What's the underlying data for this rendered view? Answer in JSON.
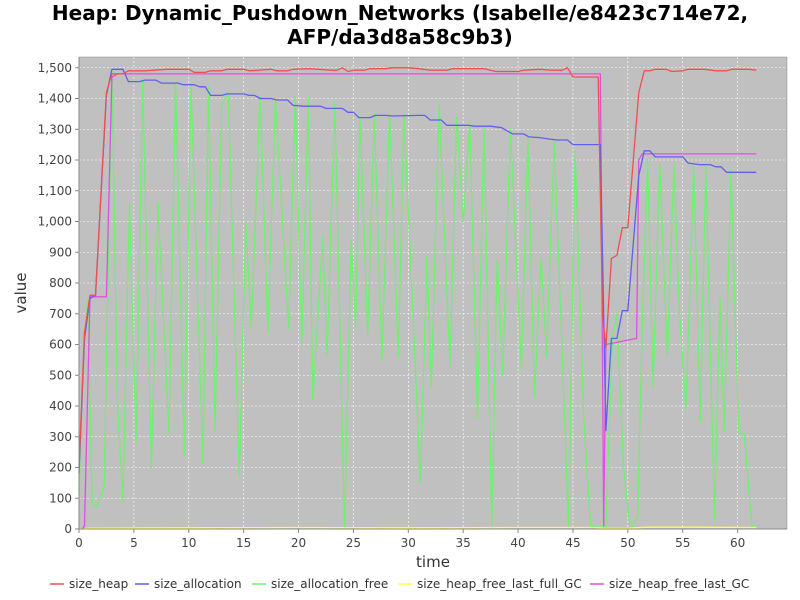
{
  "chart_data": {
    "type": "line",
    "title_lines": [
      "Heap: Dynamic_Pushdown_Networks (Isabelle/e8423c714e72,",
      "AFP/da3d8a58c9b3)"
    ],
    "xlabel": "time",
    "ylabel": "value",
    "xlim": [
      0,
      64.5
    ],
    "ylim": [
      0,
      1535
    ],
    "x_ticks": [
      0,
      5,
      10,
      15,
      20,
      25,
      30,
      35,
      40,
      45,
      50,
      55,
      60
    ],
    "x_tick_labels": [
      "0",
      "5",
      "10",
      "15",
      "20",
      "25",
      "30",
      "35",
      "40",
      "45",
      "50",
      "55",
      "60"
    ],
    "y_ticks": [
      0,
      100,
      200,
      300,
      400,
      500,
      600,
      700,
      800,
      900,
      1000,
      1100,
      1200,
      1300,
      1400,
      1500
    ],
    "y_tick_labels": [
      "0",
      "100",
      "200",
      "300",
      "400",
      "500",
      "600",
      "700",
      "800",
      "900",
      "1,000",
      "1,100",
      "1,200",
      "1,300",
      "1,400",
      "1,500"
    ],
    "grid": true,
    "legend_position": "bottom",
    "plot_background": "#c0c0c0",
    "series": [
      {
        "name": "size_heap",
        "color": "#f05050",
        "points": [
          [
            0,
            200
          ],
          [
            0.5,
            640
          ],
          [
            1,
            760
          ],
          [
            1.5,
            760
          ],
          [
            2.5,
            1420
          ],
          [
            3,
            1480
          ],
          [
            4,
            1480
          ],
          [
            4.5,
            1490
          ],
          [
            6,
            1490
          ],
          [
            8,
            1495
          ],
          [
            10,
            1495
          ],
          [
            10.5,
            1485
          ],
          [
            11.5,
            1485
          ],
          [
            12,
            1490
          ],
          [
            13,
            1490
          ],
          [
            13.5,
            1495
          ],
          [
            15,
            1495
          ],
          [
            15.5,
            1490
          ],
          [
            17.5,
            1495
          ],
          [
            18,
            1490
          ],
          [
            19,
            1490
          ],
          [
            19.5,
            1495
          ],
          [
            21,
            1497
          ],
          [
            23,
            1492
          ],
          [
            23.5,
            1492
          ],
          [
            24,
            1500
          ],
          [
            24.5,
            1488
          ],
          [
            25,
            1492
          ],
          [
            26,
            1492
          ],
          [
            26.5,
            1497
          ],
          [
            28,
            1497
          ],
          [
            28.5,
            1500
          ],
          [
            30,
            1500
          ],
          [
            31,
            1497
          ],
          [
            32,
            1492
          ],
          [
            33.5,
            1492
          ],
          [
            34,
            1497
          ],
          [
            37,
            1497
          ],
          [
            37.5,
            1492
          ],
          [
            38,
            1488
          ],
          [
            40,
            1488
          ],
          [
            40.5,
            1492
          ],
          [
            42,
            1495
          ],
          [
            43,
            1492
          ],
          [
            44,
            1492
          ],
          [
            44.5,
            1500
          ],
          [
            45,
            1470
          ],
          [
            47.3,
            1470
          ],
          [
            47.7,
            690
          ],
          [
            48,
            590
          ],
          [
            48.5,
            880
          ],
          [
            49,
            890
          ],
          [
            49.5,
            980
          ],
          [
            50,
            980
          ],
          [
            50.5,
            1200
          ],
          [
            51,
            1420
          ],
          [
            51.5,
            1490
          ],
          [
            52,
            1490
          ],
          [
            52.5,
            1495
          ],
          [
            53.5,
            1495
          ],
          [
            54,
            1488
          ],
          [
            55,
            1490
          ],
          [
            55.5,
            1495
          ],
          [
            57,
            1495
          ],
          [
            58,
            1490
          ],
          [
            59,
            1490
          ],
          [
            59.5,
            1495
          ],
          [
            61,
            1495
          ],
          [
            61.7,
            1492
          ]
        ]
      },
      {
        "name": "size_allocation",
        "color": "#6060f0",
        "points": [
          [
            0,
            180
          ],
          [
            0.5,
            620
          ],
          [
            1,
            750
          ],
          [
            1.5,
            760
          ],
          [
            2.5,
            1410
          ],
          [
            3,
            1495
          ],
          [
            4,
            1495
          ],
          [
            4.5,
            1455
          ],
          [
            5.5,
            1455
          ],
          [
            6,
            1460
          ],
          [
            7,
            1460
          ],
          [
            7.5,
            1450
          ],
          [
            9,
            1450
          ],
          [
            9.5,
            1445
          ],
          [
            10.5,
            1445
          ],
          [
            11,
            1438
          ],
          [
            11.5,
            1438
          ],
          [
            12,
            1410
          ],
          [
            13,
            1410
          ],
          [
            13.5,
            1415
          ],
          [
            15,
            1415
          ],
          [
            15.5,
            1410
          ],
          [
            16,
            1410
          ],
          [
            16.5,
            1400
          ],
          [
            17.5,
            1400
          ],
          [
            18,
            1395
          ],
          [
            19,
            1395
          ],
          [
            19.5,
            1378
          ],
          [
            20.5,
            1375
          ],
          [
            22,
            1375
          ],
          [
            22.5,
            1368
          ],
          [
            24,
            1368
          ],
          [
            24.5,
            1355
          ],
          [
            25,
            1355
          ],
          [
            25.5,
            1338
          ],
          [
            26.5,
            1338
          ],
          [
            27,
            1345
          ],
          [
            28,
            1345
          ],
          [
            28.5,
            1343
          ],
          [
            31,
            1345
          ],
          [
            31.5,
            1345
          ],
          [
            32,
            1330
          ],
          [
            33,
            1330
          ],
          [
            33.5,
            1313
          ],
          [
            35,
            1313
          ],
          [
            35.5,
            1313
          ],
          [
            36,
            1310
          ],
          [
            37.5,
            1310
          ],
          [
            38.5,
            1305
          ],
          [
            39.5,
            1285
          ],
          [
            40.5,
            1285
          ],
          [
            41,
            1275
          ],
          [
            42,
            1273
          ],
          [
            42.5,
            1270
          ],
          [
            43.5,
            1265
          ],
          [
            44.5,
            1265
          ],
          [
            45,
            1250
          ],
          [
            47.5,
            1250
          ],
          [
            48,
            320
          ],
          [
            48.5,
            620
          ],
          [
            49,
            620
          ],
          [
            49.5,
            710
          ],
          [
            50,
            710
          ],
          [
            51,
            1150
          ],
          [
            51.5,
            1230
          ],
          [
            52,
            1230
          ],
          [
            52.5,
            1210
          ],
          [
            54,
            1210
          ],
          [
            55,
            1210
          ],
          [
            55.5,
            1190
          ],
          [
            56.5,
            1185
          ],
          [
            57.5,
            1185
          ],
          [
            58,
            1178
          ],
          [
            58.5,
            1178
          ],
          [
            59,
            1160
          ],
          [
            60,
            1160
          ],
          [
            61.7,
            1160
          ]
        ]
      },
      {
        "name": "size_allocation_free",
        "color": "#70f070",
        "points": [
          [
            0,
            120
          ],
          [
            0.3,
            500
          ],
          [
            0.8,
            750
          ],
          [
            1.2,
            80
          ],
          [
            1.6,
            70
          ],
          [
            2.3,
            140
          ],
          [
            3,
            1490
          ],
          [
            3.5,
            420
          ],
          [
            4,
            90
          ],
          [
            4.6,
            1060
          ],
          [
            5.2,
            280
          ],
          [
            5.8,
            1460
          ],
          [
            6.6,
            200
          ],
          [
            7.2,
            1060
          ],
          [
            8.2,
            310
          ],
          [
            8.8,
            1450
          ],
          [
            9.6,
            240
          ],
          [
            10.2,
            1440
          ],
          [
            11.3,
            210
          ],
          [
            11.8,
            1440
          ],
          [
            12.4,
            320
          ],
          [
            13,
            1380
          ],
          [
            13.6,
            1420
          ],
          [
            14.6,
            170
          ],
          [
            15.2,
            1000
          ],
          [
            15.7,
            650
          ],
          [
            16.5,
            1410
          ],
          [
            17.2,
            640
          ],
          [
            17.9,
            1400
          ],
          [
            19.1,
            650
          ],
          [
            19.7,
            1410
          ],
          [
            20.3,
            600
          ],
          [
            20.9,
            1400
          ],
          [
            21.3,
            420
          ],
          [
            22.2,
            950
          ],
          [
            22.6,
            560
          ],
          [
            23.3,
            1390
          ],
          [
            24.2,
            0
          ],
          [
            24.8,
            940
          ],
          [
            25.2,
            650
          ],
          [
            25.6,
            1340
          ],
          [
            26.3,
            630
          ],
          [
            26.9,
            1350
          ],
          [
            27.6,
            550
          ],
          [
            28.3,
            1350
          ],
          [
            29.1,
            560
          ],
          [
            29.6,
            1350
          ],
          [
            30.6,
            560
          ],
          [
            31.1,
            150
          ],
          [
            31.7,
            890
          ],
          [
            32.1,
            460
          ],
          [
            32.8,
            1380
          ],
          [
            33.8,
            530
          ],
          [
            34.4,
            1340
          ],
          [
            35,
            1000
          ],
          [
            35.6,
            1320
          ],
          [
            36.3,
            360
          ],
          [
            36.9,
            1310
          ],
          [
            37.6,
            10
          ],
          [
            38.1,
            880
          ],
          [
            38.6,
            500
          ],
          [
            39.3,
            1300
          ],
          [
            40.3,
            520
          ],
          [
            40.9,
            1270
          ],
          [
            41.5,
            430
          ],
          [
            42.1,
            880
          ],
          [
            42.6,
            560
          ],
          [
            43.3,
            1260
          ],
          [
            44.6,
            10
          ],
          [
            45.2,
            1230
          ],
          [
            46,
            350
          ],
          [
            46.6,
            10
          ],
          [
            47.4,
            5
          ],
          [
            48,
            10
          ],
          [
            48.6,
            620
          ],
          [
            49,
            700
          ],
          [
            49.6,
            210
          ],
          [
            50.2,
            0
          ],
          [
            50.9,
            40
          ],
          [
            51.3,
            640
          ],
          [
            51.8,
            1200
          ],
          [
            52.3,
            460
          ],
          [
            52.9,
            1190
          ],
          [
            53.6,
            560
          ],
          [
            54.2,
            1190
          ],
          [
            54.7,
            710
          ],
          [
            55.3,
            390
          ],
          [
            56,
            1180
          ],
          [
            56.6,
            350
          ],
          [
            57.1,
            1180
          ],
          [
            57.9,
            30
          ],
          [
            58.4,
            750
          ],
          [
            58.8,
            320
          ],
          [
            59.4,
            1170
          ],
          [
            60.1,
            310
          ],
          [
            60.6,
            310
          ],
          [
            61.3,
            10
          ],
          [
            61.7,
            5
          ]
        ]
      },
      {
        "name": "size_heap_free_last_full_GC",
        "color": "#ffff50",
        "points": [
          [
            0,
            0
          ],
          [
            1,
            3
          ],
          [
            10,
            4
          ],
          [
            20,
            5
          ],
          [
            30,
            4
          ],
          [
            40,
            5
          ],
          [
            47,
            5
          ],
          [
            48,
            2
          ],
          [
            50,
            3
          ],
          [
            52,
            6
          ],
          [
            56,
            6
          ],
          [
            61.7,
            5
          ]
        ]
      },
      {
        "name": "size_heap_free_last_GC",
        "color": "#e050e0",
        "points": [
          [
            0.3,
            0
          ],
          [
            0.5,
            10
          ],
          [
            1,
            755
          ],
          [
            2.5,
            755
          ],
          [
            3,
            1470
          ],
          [
            3.5,
            1480
          ],
          [
            47.5,
            1480
          ],
          [
            47.8,
            10
          ],
          [
            48,
            600
          ],
          [
            50.8,
            620
          ],
          [
            51,
            1200
          ],
          [
            51.3,
            1220
          ],
          [
            61.7,
            1220
          ]
        ]
      }
    ]
  }
}
